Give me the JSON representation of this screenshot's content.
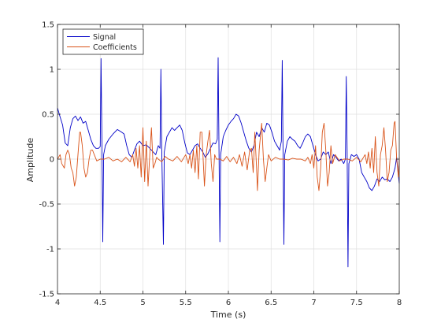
{
  "chart_data": {
    "type": "line",
    "xlabel": "Time (s)",
    "ylabel": "Amplitude",
    "xlim": [
      4,
      8
    ],
    "ylim": [
      -1.5,
      1.5
    ],
    "xticks": [
      4,
      4.5,
      5,
      5.5,
      6,
      6.5,
      7,
      7.5,
      8
    ],
    "xtick_labels": [
      "4",
      "4.5",
      "5",
      "5.5",
      "6",
      "6.5",
      "7",
      "7.5",
      "8"
    ],
    "yticks": [
      -1.5,
      -1,
      -0.5,
      0,
      0.5,
      1,
      1.5
    ],
    "ytick_labels": [
      "-1.5",
      "-1",
      "-0.5",
      "0",
      "0.5",
      "1",
      "1.5"
    ],
    "grid": true,
    "legend_position": "top-left",
    "series": [
      {
        "name": "Signal",
        "color": "#0000c8",
        "points": [
          [
            4.0,
            0.57
          ],
          [
            4.03,
            0.47
          ],
          [
            4.06,
            0.38
          ],
          [
            4.09,
            0.18
          ],
          [
            4.12,
            0.15
          ],
          [
            4.15,
            0.35
          ],
          [
            4.18,
            0.45
          ],
          [
            4.21,
            0.48
          ],
          [
            4.24,
            0.43
          ],
          [
            4.27,
            0.47
          ],
          [
            4.3,
            0.4
          ],
          [
            4.33,
            0.42
          ],
          [
            4.36,
            0.32
          ],
          [
            4.39,
            0.22
          ],
          [
            4.42,
            0.15
          ],
          [
            4.45,
            0.12
          ],
          [
            4.48,
            0.12
          ],
          [
            4.5,
            0.14
          ],
          [
            4.51,
            1.12
          ],
          [
            4.52,
            0.2
          ],
          [
            4.53,
            -0.92
          ],
          [
            4.54,
            0.05
          ],
          [
            4.56,
            0.15
          ],
          [
            4.6,
            0.22
          ],
          [
            4.65,
            0.28
          ],
          [
            4.7,
            0.33
          ],
          [
            4.75,
            0.3
          ],
          [
            4.78,
            0.28
          ],
          [
            4.81,
            0.15
          ],
          [
            4.84,
            0.05
          ],
          [
            4.87,
            0.02
          ],
          [
            4.9,
            0.1
          ],
          [
            4.93,
            0.17
          ],
          [
            4.96,
            0.2
          ],
          [
            5.0,
            0.15
          ],
          [
            5.04,
            0.16
          ],
          [
            5.08,
            0.12
          ],
          [
            5.12,
            0.08
          ],
          [
            5.15,
            0.05
          ],
          [
            5.18,
            0.15
          ],
          [
            5.2,
            0.12
          ],
          [
            5.21,
            1.0
          ],
          [
            5.22,
            0.1
          ],
          [
            5.24,
            -0.95
          ],
          [
            5.25,
            0.08
          ],
          [
            5.28,
            0.25
          ],
          [
            5.31,
            0.3
          ],
          [
            5.34,
            0.35
          ],
          [
            5.37,
            0.32
          ],
          [
            5.4,
            0.35
          ],
          [
            5.43,
            0.38
          ],
          [
            5.46,
            0.32
          ],
          [
            5.49,
            0.18
          ],
          [
            5.52,
            0.07
          ],
          [
            5.55,
            0.05
          ],
          [
            5.58,
            0.1
          ],
          [
            5.61,
            0.15
          ],
          [
            5.64,
            0.17
          ],
          [
            5.67,
            0.12
          ],
          [
            5.7,
            0.08
          ],
          [
            5.73,
            0.02
          ],
          [
            5.76,
            0.06
          ],
          [
            5.79,
            0.12
          ],
          [
            5.82,
            0.18
          ],
          [
            5.85,
            0.17
          ],
          [
            5.87,
            0.22
          ],
          [
            5.88,
            1.13
          ],
          [
            5.89,
            0.1
          ],
          [
            5.9,
            -0.92
          ],
          [
            5.91,
            0.05
          ],
          [
            5.94,
            0.25
          ],
          [
            5.97,
            0.32
          ],
          [
            6.0,
            0.38
          ],
          [
            6.03,
            0.42
          ],
          [
            6.06,
            0.45
          ],
          [
            6.09,
            0.5
          ],
          [
            6.12,
            0.48
          ],
          [
            6.15,
            0.4
          ],
          [
            6.18,
            0.3
          ],
          [
            6.21,
            0.2
          ],
          [
            6.24,
            0.12
          ],
          [
            6.27,
            0.08
          ],
          [
            6.3,
            0.15
          ],
          [
            6.33,
            0.3
          ],
          [
            6.36,
            0.25
          ],
          [
            6.39,
            0.35
          ],
          [
            6.42,
            0.3
          ],
          [
            6.45,
            0.4
          ],
          [
            6.48,
            0.38
          ],
          [
            6.51,
            0.3
          ],
          [
            6.54,
            0.2
          ],
          [
            6.57,
            0.15
          ],
          [
            6.6,
            0.1
          ],
          [
            6.62,
            0.2
          ],
          [
            6.63,
            1.1
          ],
          [
            6.64,
            0.1
          ],
          [
            6.65,
            -0.95
          ],
          [
            6.66,
            0.05
          ],
          [
            6.69,
            0.2
          ],
          [
            6.72,
            0.25
          ],
          [
            6.75,
            0.22
          ],
          [
            6.78,
            0.2
          ],
          [
            6.81,
            0.15
          ],
          [
            6.84,
            0.12
          ],
          [
            6.87,
            0.18
          ],
          [
            6.9,
            0.25
          ],
          [
            6.93,
            0.28
          ],
          [
            6.96,
            0.25
          ],
          [
            6.99,
            0.15
          ],
          [
            7.02,
            0.05
          ],
          [
            7.05,
            -0.02
          ],
          [
            7.08,
            0.0
          ],
          [
            7.11,
            0.08
          ],
          [
            7.14,
            0.05
          ],
          [
            7.17,
            0.08
          ],
          [
            7.2,
            -0.05
          ],
          [
            7.23,
            0.05
          ],
          [
            7.26,
            0.02
          ],
          [
            7.29,
            -0.02
          ],
          [
            7.32,
            0.0
          ],
          [
            7.35,
            -0.05
          ],
          [
            7.37,
            0.0
          ],
          [
            7.38,
            0.92
          ],
          [
            7.39,
            0.1
          ],
          [
            7.4,
            -1.2
          ],
          [
            7.41,
            -0.05
          ],
          [
            7.44,
            0.05
          ],
          [
            7.47,
            0.03
          ],
          [
            7.5,
            0.05
          ],
          [
            7.53,
            0.0
          ],
          [
            7.56,
            -0.15
          ],
          [
            7.59,
            -0.2
          ],
          [
            7.62,
            -0.25
          ],
          [
            7.65,
            -0.32
          ],
          [
            7.68,
            -0.35
          ],
          [
            7.71,
            -0.3
          ],
          [
            7.74,
            -0.22
          ],
          [
            7.77,
            -0.25
          ],
          [
            7.8,
            -0.2
          ],
          [
            7.83,
            -0.23
          ],
          [
            7.86,
            -0.22
          ],
          [
            7.89,
            -0.25
          ],
          [
            7.92,
            -0.2
          ],
          [
            7.95,
            -0.1
          ],
          [
            7.97,
            0.02
          ],
          [
            7.99,
            -0.18
          ],
          [
            8.0,
            -0.27
          ]
        ]
      },
      {
        "name": "Coefficients",
        "color": "#d95319",
        "points": [
          [
            4.0,
            0.0
          ],
          [
            4.03,
            0.05
          ],
          [
            4.05,
            -0.05
          ],
          [
            4.08,
            -0.1
          ],
          [
            4.1,
            0.05
          ],
          [
            4.12,
            0.1
          ],
          [
            4.14,
            0.05
          ],
          [
            4.16,
            -0.1
          ],
          [
            4.18,
            -0.15
          ],
          [
            4.2,
            -0.3
          ],
          [
            4.22,
            -0.2
          ],
          [
            4.24,
            0.05
          ],
          [
            4.26,
            0.3
          ],
          [
            4.27,
            0.3
          ],
          [
            4.29,
            0.15
          ],
          [
            4.31,
            -0.1
          ],
          [
            4.33,
            -0.2
          ],
          [
            4.35,
            -0.15
          ],
          [
            4.37,
            0.0
          ],
          [
            4.39,
            0.1
          ],
          [
            4.41,
            0.1
          ],
          [
            4.43,
            0.05
          ],
          [
            4.46,
            -0.02
          ],
          [
            4.5,
            0.0
          ],
          [
            4.55,
            0.0
          ],
          [
            4.6,
            0.02
          ],
          [
            4.65,
            -0.02
          ],
          [
            4.7,
            0.0
          ],
          [
            4.75,
            -0.03
          ],
          [
            4.8,
            0.02
          ],
          [
            4.85,
            -0.03
          ],
          [
            4.88,
            0.05
          ],
          [
            4.9,
            -0.08
          ],
          [
            4.92,
            0.12
          ],
          [
            4.94,
            -0.1
          ],
          [
            4.96,
            0.15
          ],
          [
            4.98,
            -0.2
          ],
          [
            5.0,
            0.35
          ],
          [
            5.02,
            -0.25
          ],
          [
            5.04,
            0.2
          ],
          [
            5.06,
            -0.3
          ],
          [
            5.08,
            0.05
          ],
          [
            5.1,
            0.35
          ],
          [
            5.12,
            -0.1
          ],
          [
            5.14,
            -0.05
          ],
          [
            5.16,
            0.02
          ],
          [
            5.18,
            0.0
          ],
          [
            5.22,
            -0.03
          ],
          [
            5.26,
            0.03
          ],
          [
            5.3,
            0.0
          ],
          [
            5.35,
            -0.02
          ],
          [
            5.4,
            0.03
          ],
          [
            5.45,
            -0.03
          ],
          [
            5.5,
            0.05
          ],
          [
            5.53,
            -0.05
          ],
          [
            5.55,
            0.05
          ],
          [
            5.57,
            -0.1
          ],
          [
            5.59,
            0.1
          ],
          [
            5.61,
            -0.15
          ],
          [
            5.63,
            0.15
          ],
          [
            5.65,
            -0.22
          ],
          [
            5.67,
            0.3
          ],
          [
            5.69,
            0.3
          ],
          [
            5.71,
            -0.1
          ],
          [
            5.72,
            -0.3
          ],
          [
            5.74,
            0.05
          ],
          [
            5.76,
            0.2
          ],
          [
            5.78,
            0.32
          ],
          [
            5.8,
            -0.05
          ],
          [
            5.82,
            -0.25
          ],
          [
            5.84,
            0.05
          ],
          [
            5.86,
            0.0
          ],
          [
            5.9,
            0.0
          ],
          [
            5.94,
            -0.02
          ],
          [
            5.98,
            0.03
          ],
          [
            6.02,
            -0.03
          ],
          [
            6.06,
            0.02
          ],
          [
            6.1,
            -0.05
          ],
          [
            6.13,
            0.05
          ],
          [
            6.16,
            -0.08
          ],
          [
            6.19,
            0.08
          ],
          [
            6.22,
            -0.12
          ],
          [
            6.25,
            0.1
          ],
          [
            6.27,
            0.12
          ],
          [
            6.29,
            -0.15
          ],
          [
            6.31,
            0.3
          ],
          [
            6.33,
            -0.1
          ],
          [
            6.34,
            -0.35
          ],
          [
            6.36,
            0.1
          ],
          [
            6.38,
            0.3
          ],
          [
            6.39,
            0.4
          ],
          [
            6.41,
            0.0
          ],
          [
            6.43,
            -0.25
          ],
          [
            6.45,
            -0.1
          ],
          [
            6.47,
            0.05
          ],
          [
            6.5,
            -0.02
          ],
          [
            6.55,
            0.02
          ],
          [
            6.6,
            0.0
          ],
          [
            6.65,
            0.0
          ],
          [
            6.7,
            -0.01
          ],
          [
            6.75,
            0.01
          ],
          [
            6.8,
            0.0
          ],
          [
            6.85,
            0.0
          ],
          [
            6.9,
            -0.02
          ],
          [
            6.93,
            0.02
          ],
          [
            6.96,
            -0.05
          ],
          [
            6.98,
            0.05
          ],
          [
            7.0,
            -0.1
          ],
          [
            7.02,
            0.15
          ],
          [
            7.04,
            -0.2
          ],
          [
            7.06,
            -0.35
          ],
          [
            7.08,
            -0.1
          ],
          [
            7.1,
            0.3
          ],
          [
            7.12,
            0.4
          ],
          [
            7.14,
            0.1
          ],
          [
            7.16,
            -0.3
          ],
          [
            7.18,
            -0.15
          ],
          [
            7.2,
            0.15
          ],
          [
            7.22,
            -0.05
          ],
          [
            7.25,
            0.05
          ],
          [
            7.3,
            -0.02
          ],
          [
            7.35,
            0.0
          ],
          [
            7.4,
            0.0
          ],
          [
            7.45,
            -0.02
          ],
          [
            7.5,
            0.02
          ],
          [
            7.55,
            -0.03
          ],
          [
            7.6,
            0.05
          ],
          [
            7.62,
            -0.05
          ],
          [
            7.64,
            0.08
          ],
          [
            7.66,
            -0.1
          ],
          [
            7.68,
            0.12
          ],
          [
            7.7,
            -0.15
          ],
          [
            7.72,
            0.25
          ],
          [
            7.74,
            -0.15
          ],
          [
            7.76,
            -0.3
          ],
          [
            7.78,
            0.05
          ],
          [
            7.8,
            0.15
          ],
          [
            7.82,
            0.35
          ],
          [
            7.84,
            0.1
          ],
          [
            7.86,
            -0.25
          ],
          [
            7.88,
            -0.15
          ],
          [
            7.9,
            0.1
          ],
          [
            7.92,
            0.15
          ],
          [
            7.94,
            0.4
          ],
          [
            7.95,
            0.42
          ],
          [
            7.97,
            0.0
          ],
          [
            7.99,
            -0.2
          ],
          [
            8.0,
            0.02
          ]
        ]
      }
    ]
  }
}
